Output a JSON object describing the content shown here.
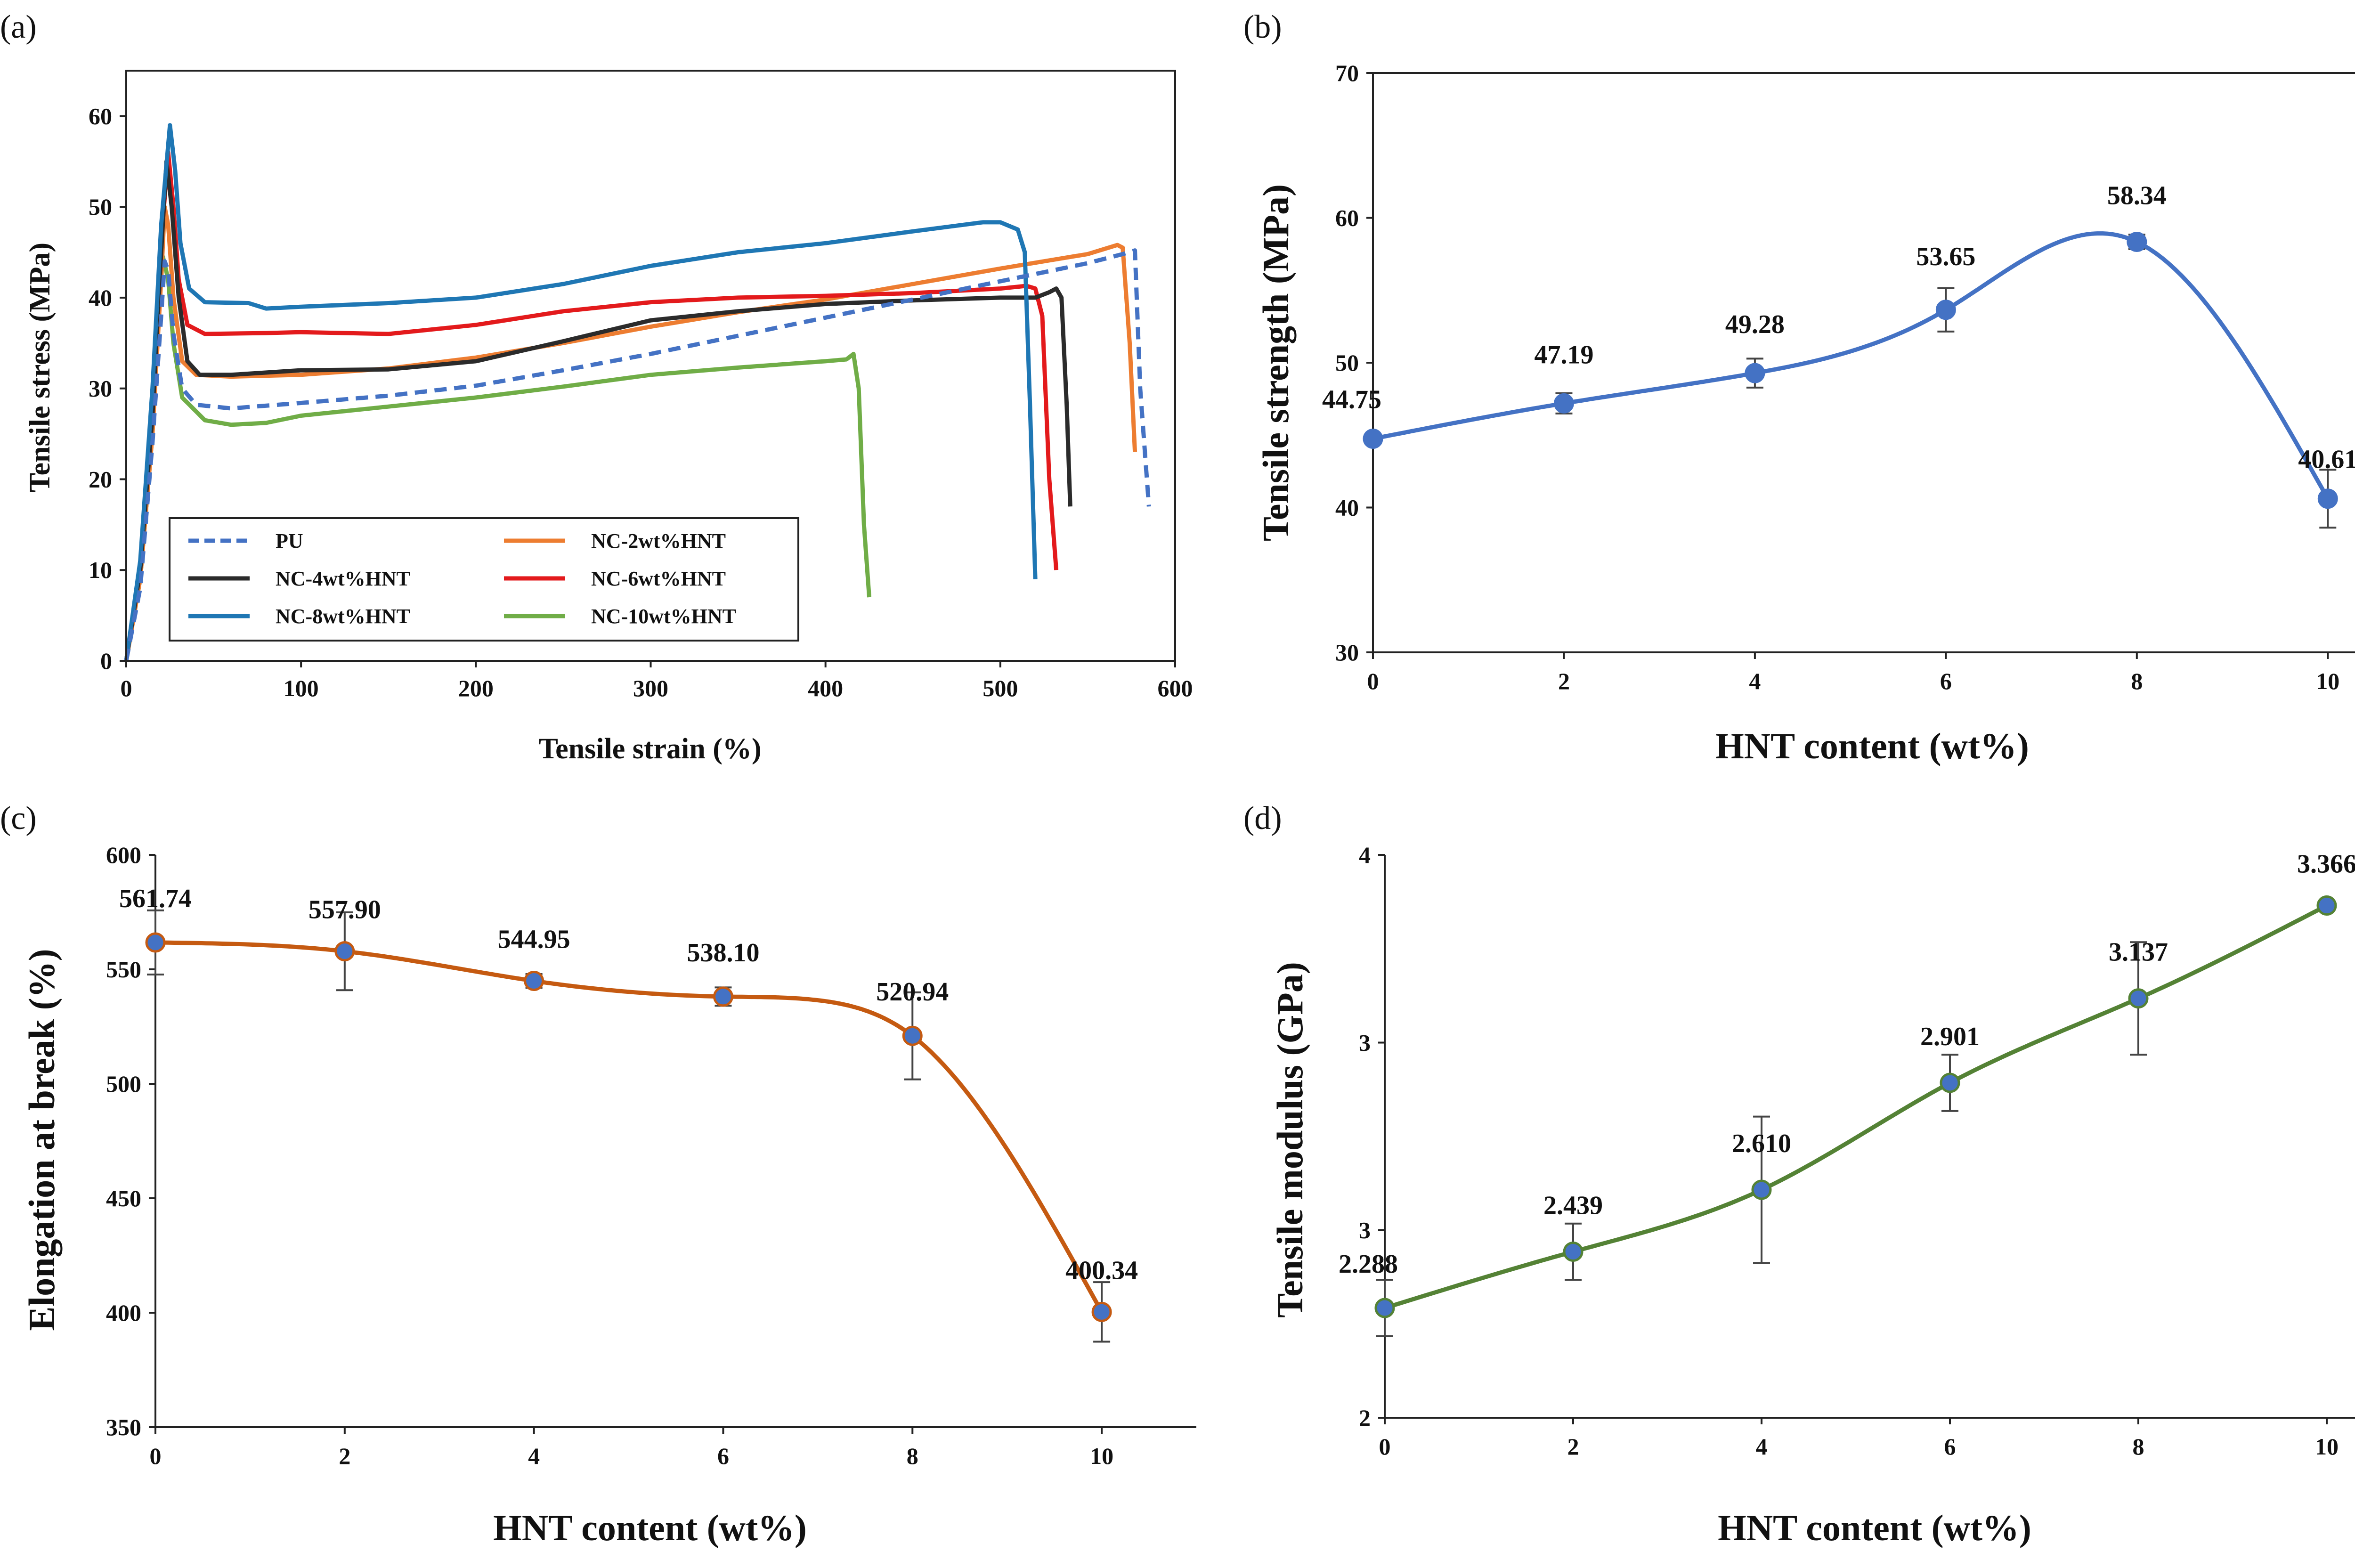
{
  "chart_data": [
    {
      "panel": "(a)",
      "type": "line",
      "xlabel": "Tensile strain (%)",
      "ylabel": "Tensile stress (MPa)",
      "xlim": [
        0,
        600
      ],
      "ylim": [
        0,
        65
      ],
      "xticks": [
        0,
        100,
        200,
        300,
        400,
        500,
        600
      ],
      "yticks": [
        0,
        10,
        20,
        30,
        40,
        50,
        60
      ],
      "grid": false,
      "legend_position": "bottom-left",
      "series": [
        {
          "name": "PU",
          "color": "#4472c4",
          "dash": true,
          "points": [
            [
              0,
              0
            ],
            [
              8,
              8
            ],
            [
              15,
              24
            ],
            [
              20,
              38
            ],
            [
              22,
              44
            ],
            [
              24,
              43
            ],
            [
              27,
              36
            ],
            [
              32,
              30
            ],
            [
              40,
              28.2
            ],
            [
              60,
              27.8
            ],
            [
              100,
              28.4
            ],
            [
              150,
              29.2
            ],
            [
              200,
              30.3
            ],
            [
              250,
              32
            ],
            [
              300,
              33.8
            ],
            [
              350,
              35.8
            ],
            [
              400,
              37.8
            ],
            [
              450,
              39.8
            ],
            [
              500,
              41.8
            ],
            [
              550,
              43.8
            ],
            [
              572,
              44.9
            ],
            [
              577,
              45.2
            ],
            [
              580,
              30
            ],
            [
              585,
              17
            ]
          ]
        },
        {
          "name": "NC-2wt%HNT",
          "color": "#ed7d31",
          "dash": false,
          "points": [
            [
              0,
              0
            ],
            [
              8,
              9
            ],
            [
              15,
              25
            ],
            [
              20,
              42
            ],
            [
              22,
              50
            ],
            [
              24,
              48
            ],
            [
              27,
              40
            ],
            [
              32,
              33
            ],
            [
              40,
              31.5
            ],
            [
              60,
              31.3
            ],
            [
              100,
              31.5
            ],
            [
              150,
              32.2
            ],
            [
              200,
              33.4
            ],
            [
              250,
              35
            ],
            [
              300,
              36.8
            ],
            [
              350,
              38.4
            ],
            [
              400,
              39.8
            ],
            [
              450,
              41.5
            ],
            [
              500,
              43.2
            ],
            [
              550,
              44.8
            ],
            [
              567,
              45.8
            ],
            [
              570,
              45.5
            ],
            [
              574,
              35
            ],
            [
              577,
              23
            ]
          ]
        },
        {
          "name": "NC-4wt%HNT",
          "color": "#2b2b2b",
          "dash": false,
          "points": [
            [
              0,
              0
            ],
            [
              8,
              10
            ],
            [
              15,
              27
            ],
            [
              20,
              45
            ],
            [
              23,
              55
            ],
            [
              26,
              50
            ],
            [
              30,
              40
            ],
            [
              35,
              33
            ],
            [
              42,
              31.5
            ],
            [
              60,
              31.5
            ],
            [
              100,
              32
            ],
            [
              150,
              32.1
            ],
            [
              200,
              33
            ],
            [
              250,
              35.2
            ],
            [
              300,
              37.5
            ],
            [
              350,
              38.5
            ],
            [
              400,
              39.3
            ],
            [
              450,
              39.7
            ],
            [
              500,
              40
            ],
            [
              520,
              40
            ],
            [
              528,
              40.6
            ],
            [
              532,
              41
            ],
            [
              535,
              40
            ],
            [
              538,
              28
            ],
            [
              540,
              17
            ]
          ]
        },
        {
          "name": "NC-6wt%HNT",
          "color": "#e31a1c",
          "dash": false,
          "points": [
            [
              0,
              0
            ],
            [
              8,
              10
            ],
            [
              15,
              28
            ],
            [
              20,
              46
            ],
            [
              24,
              56
            ],
            [
              27,
              50
            ],
            [
              30,
              42
            ],
            [
              35,
              37
            ],
            [
              45,
              36
            ],
            [
              80,
              36.1
            ],
            [
              100,
              36.2
            ],
            [
              150,
              36
            ],
            [
              200,
              37
            ],
            [
              250,
              38.5
            ],
            [
              300,
              39.5
            ],
            [
              350,
              40
            ],
            [
              400,
              40.2
            ],
            [
              450,
              40.5
            ],
            [
              500,
              41
            ],
            [
              515,
              41.3
            ],
            [
              520,
              41
            ],
            [
              524,
              38
            ],
            [
              528,
              20
            ],
            [
              532,
              10
            ]
          ]
        },
        {
          "name": "NC-8wt%HNT",
          "color": "#1f77b4",
          "dash": false,
          "points": [
            [
              0,
              0
            ],
            [
              8,
              11
            ],
            [
              15,
              30
            ],
            [
              20,
              48
            ],
            [
              25,
              59
            ],
            [
              28,
              54
            ],
            [
              31,
              46
            ],
            [
              36,
              41
            ],
            [
              45,
              39.5
            ],
            [
              70,
              39.4
            ],
            [
              80,
              38.8
            ],
            [
              100,
              39
            ],
            [
              150,
              39.4
            ],
            [
              200,
              40
            ],
            [
              250,
              41.5
            ],
            [
              300,
              43.5
            ],
            [
              350,
              45
            ],
            [
              400,
              46
            ],
            [
              450,
              47.3
            ],
            [
              490,
              48.3
            ],
            [
              500,
              48.3
            ],
            [
              510,
              47.5
            ],
            [
              514,
              45
            ],
            [
              517,
              28
            ],
            [
              520,
              9
            ]
          ]
        },
        {
          "name": "NC-10wt%HNT",
          "color": "#70ad47",
          "dash": false,
          "points": [
            [
              0,
              0
            ],
            [
              8,
              9
            ],
            [
              15,
              25
            ],
            [
              19,
              40
            ],
            [
              21,
              44.5
            ],
            [
              24,
              42
            ],
            [
              27,
              35
            ],
            [
              32,
              29
            ],
            [
              45,
              26.5
            ],
            [
              60,
              26
            ],
            [
              80,
              26.2
            ],
            [
              100,
              27
            ],
            [
              150,
              28
            ],
            [
              200,
              29
            ],
            [
              250,
              30.2
            ],
            [
              300,
              31.5
            ],
            [
              350,
              32.3
            ],
            [
              400,
              33
            ],
            [
              412,
              33.2
            ],
            [
              416,
              33.8
            ],
            [
              419,
              30
            ],
            [
              422,
              15
            ],
            [
              425,
              7
            ]
          ]
        }
      ]
    },
    {
      "panel": "(b)",
      "type": "line",
      "xlabel": "HNT content (wt%)",
      "ylabel": "Tensile strength (MPa)",
      "xlim": [
        0,
        11
      ],
      "ylim": [
        30,
        70
      ],
      "xticks": [
        0,
        2,
        4,
        6,
        8,
        10
      ],
      "yticks": [
        30,
        40,
        50,
        60,
        70
      ],
      "line_color": "#4472c4",
      "marker_color": "#4472c4",
      "x": [
        0,
        2,
        4,
        6,
        8,
        10
      ],
      "values": [
        44.75,
        47.19,
        49.28,
        53.65,
        58.34,
        40.61
      ],
      "labels": [
        "44.75",
        "47.19",
        "49.28",
        "53.65",
        "58.34",
        "40.61"
      ],
      "errors": [
        0.3,
        0.7,
        1.0,
        1.5,
        0.5,
        2.0
      ],
      "smooth_extra": [
        [
          7.7,
          58.9
        ]
      ]
    },
    {
      "panel": "(c)",
      "type": "line",
      "xlabel": "HNT content (wt%)",
      "ylabel": "Elongation at break (%)",
      "xlim": [
        0,
        11
      ],
      "ylim": [
        350,
        600
      ],
      "xticks": [
        0,
        2,
        4,
        6,
        8,
        10
      ],
      "yticks": [
        350,
        400,
        450,
        500,
        550,
        600
      ],
      "line_color": "#c55a11",
      "marker_color": "#4472c4",
      "x": [
        0,
        2,
        4,
        6,
        8,
        10
      ],
      "values": [
        561.74,
        557.9,
        544.95,
        538.1,
        520.94,
        400.34
      ],
      "labels": [
        "561.74",
        "557.90",
        "544.95",
        "538.10",
        "520.94",
        "400.34"
      ],
      "errors": [
        14,
        17,
        3,
        4,
        19,
        13
      ],
      "smooth_extra": [
        [
          7,
          536.5
        ]
      ]
    },
    {
      "panel": "(d)",
      "type": "line",
      "xlabel": "HNT content (wt%)",
      "ylabel": "Tensile modulus (GPa)",
      "xlim": [
        0,
        11
      ],
      "ylim": [
        2,
        4
      ],
      "xticks": [
        0,
        2,
        4,
        6,
        8,
        10
      ],
      "ytick_values": [
        2,
        2.667,
        3.333,
        4
      ],
      "ytick_labels": [
        "2",
        "3",
        "3",
        "4"
      ],
      "line_color": "#548235",
      "marker_color": "#4472c4",
      "x": [
        0,
        2,
        4,
        6,
        8,
        10
      ],
      "values": [
        2.288,
        2.439,
        2.61,
        2.901,
        3.137,
        3.366
      ],
      "labels": [
        "2.288",
        "2.439",
        "2.610",
        "2.901",
        "3.137",
        "3.366"
      ],
      "errors": [
        0.1,
        0.1,
        0.26,
        0.1,
        0.2,
        0.01
      ],
      "plot_values": [
        2.39,
        2.59,
        2.81,
        3.19,
        3.49,
        3.82
      ],
      "smooth_extra": []
    }
  ]
}
